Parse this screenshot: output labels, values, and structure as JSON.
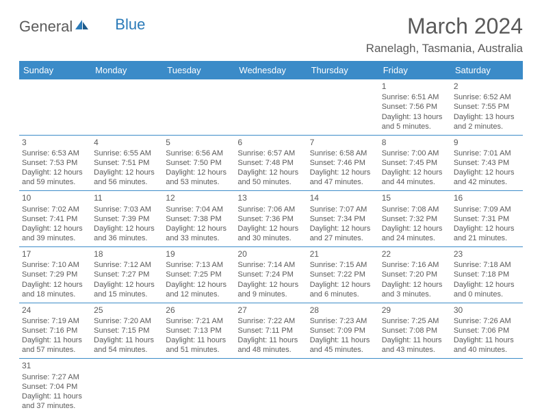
{
  "logo": {
    "general": "General",
    "blue": "Blue"
  },
  "title": "March 2024",
  "location": "Ranelagh, Tasmania, Australia",
  "colors": {
    "header_bg": "#3b8bc8",
    "row_divider": "#3b8bc8",
    "text": "#5a5a5a",
    "logo_blue": "#2a7ab8"
  },
  "weekdays": [
    "Sunday",
    "Monday",
    "Tuesday",
    "Wednesday",
    "Thursday",
    "Friday",
    "Saturday"
  ],
  "weeks": [
    [
      null,
      null,
      null,
      null,
      null,
      {
        "n": "1",
        "sr": "Sunrise: 6:51 AM",
        "ss": "Sunset: 7:56 PM",
        "d1": "Daylight: 13 hours",
        "d2": "and 5 minutes."
      },
      {
        "n": "2",
        "sr": "Sunrise: 6:52 AM",
        "ss": "Sunset: 7:55 PM",
        "d1": "Daylight: 13 hours",
        "d2": "and 2 minutes."
      }
    ],
    [
      {
        "n": "3",
        "sr": "Sunrise: 6:53 AM",
        "ss": "Sunset: 7:53 PM",
        "d1": "Daylight: 12 hours",
        "d2": "and 59 minutes."
      },
      {
        "n": "4",
        "sr": "Sunrise: 6:55 AM",
        "ss": "Sunset: 7:51 PM",
        "d1": "Daylight: 12 hours",
        "d2": "and 56 minutes."
      },
      {
        "n": "5",
        "sr": "Sunrise: 6:56 AM",
        "ss": "Sunset: 7:50 PM",
        "d1": "Daylight: 12 hours",
        "d2": "and 53 minutes."
      },
      {
        "n": "6",
        "sr": "Sunrise: 6:57 AM",
        "ss": "Sunset: 7:48 PM",
        "d1": "Daylight: 12 hours",
        "d2": "and 50 minutes."
      },
      {
        "n": "7",
        "sr": "Sunrise: 6:58 AM",
        "ss": "Sunset: 7:46 PM",
        "d1": "Daylight: 12 hours",
        "d2": "and 47 minutes."
      },
      {
        "n": "8",
        "sr": "Sunrise: 7:00 AM",
        "ss": "Sunset: 7:45 PM",
        "d1": "Daylight: 12 hours",
        "d2": "and 44 minutes."
      },
      {
        "n": "9",
        "sr": "Sunrise: 7:01 AM",
        "ss": "Sunset: 7:43 PM",
        "d1": "Daylight: 12 hours",
        "d2": "and 42 minutes."
      }
    ],
    [
      {
        "n": "10",
        "sr": "Sunrise: 7:02 AM",
        "ss": "Sunset: 7:41 PM",
        "d1": "Daylight: 12 hours",
        "d2": "and 39 minutes."
      },
      {
        "n": "11",
        "sr": "Sunrise: 7:03 AM",
        "ss": "Sunset: 7:39 PM",
        "d1": "Daylight: 12 hours",
        "d2": "and 36 minutes."
      },
      {
        "n": "12",
        "sr": "Sunrise: 7:04 AM",
        "ss": "Sunset: 7:38 PM",
        "d1": "Daylight: 12 hours",
        "d2": "and 33 minutes."
      },
      {
        "n": "13",
        "sr": "Sunrise: 7:06 AM",
        "ss": "Sunset: 7:36 PM",
        "d1": "Daylight: 12 hours",
        "d2": "and 30 minutes."
      },
      {
        "n": "14",
        "sr": "Sunrise: 7:07 AM",
        "ss": "Sunset: 7:34 PM",
        "d1": "Daylight: 12 hours",
        "d2": "and 27 minutes."
      },
      {
        "n": "15",
        "sr": "Sunrise: 7:08 AM",
        "ss": "Sunset: 7:32 PM",
        "d1": "Daylight: 12 hours",
        "d2": "and 24 minutes."
      },
      {
        "n": "16",
        "sr": "Sunrise: 7:09 AM",
        "ss": "Sunset: 7:31 PM",
        "d1": "Daylight: 12 hours",
        "d2": "and 21 minutes."
      }
    ],
    [
      {
        "n": "17",
        "sr": "Sunrise: 7:10 AM",
        "ss": "Sunset: 7:29 PM",
        "d1": "Daylight: 12 hours",
        "d2": "and 18 minutes."
      },
      {
        "n": "18",
        "sr": "Sunrise: 7:12 AM",
        "ss": "Sunset: 7:27 PM",
        "d1": "Daylight: 12 hours",
        "d2": "and 15 minutes."
      },
      {
        "n": "19",
        "sr": "Sunrise: 7:13 AM",
        "ss": "Sunset: 7:25 PM",
        "d1": "Daylight: 12 hours",
        "d2": "and 12 minutes."
      },
      {
        "n": "20",
        "sr": "Sunrise: 7:14 AM",
        "ss": "Sunset: 7:24 PM",
        "d1": "Daylight: 12 hours",
        "d2": "and 9 minutes."
      },
      {
        "n": "21",
        "sr": "Sunrise: 7:15 AM",
        "ss": "Sunset: 7:22 PM",
        "d1": "Daylight: 12 hours",
        "d2": "and 6 minutes."
      },
      {
        "n": "22",
        "sr": "Sunrise: 7:16 AM",
        "ss": "Sunset: 7:20 PM",
        "d1": "Daylight: 12 hours",
        "d2": "and 3 minutes."
      },
      {
        "n": "23",
        "sr": "Sunrise: 7:18 AM",
        "ss": "Sunset: 7:18 PM",
        "d1": "Daylight: 12 hours",
        "d2": "and 0 minutes."
      }
    ],
    [
      {
        "n": "24",
        "sr": "Sunrise: 7:19 AM",
        "ss": "Sunset: 7:16 PM",
        "d1": "Daylight: 11 hours",
        "d2": "and 57 minutes."
      },
      {
        "n": "25",
        "sr": "Sunrise: 7:20 AM",
        "ss": "Sunset: 7:15 PM",
        "d1": "Daylight: 11 hours",
        "d2": "and 54 minutes."
      },
      {
        "n": "26",
        "sr": "Sunrise: 7:21 AM",
        "ss": "Sunset: 7:13 PM",
        "d1": "Daylight: 11 hours",
        "d2": "and 51 minutes."
      },
      {
        "n": "27",
        "sr": "Sunrise: 7:22 AM",
        "ss": "Sunset: 7:11 PM",
        "d1": "Daylight: 11 hours",
        "d2": "and 48 minutes."
      },
      {
        "n": "28",
        "sr": "Sunrise: 7:23 AM",
        "ss": "Sunset: 7:09 PM",
        "d1": "Daylight: 11 hours",
        "d2": "and 45 minutes."
      },
      {
        "n": "29",
        "sr": "Sunrise: 7:25 AM",
        "ss": "Sunset: 7:08 PM",
        "d1": "Daylight: 11 hours",
        "d2": "and 43 minutes."
      },
      {
        "n": "30",
        "sr": "Sunrise: 7:26 AM",
        "ss": "Sunset: 7:06 PM",
        "d1": "Daylight: 11 hours",
        "d2": "and 40 minutes."
      }
    ],
    [
      {
        "n": "31",
        "sr": "Sunrise: 7:27 AM",
        "ss": "Sunset: 7:04 PM",
        "d1": "Daylight: 11 hours",
        "d2": "and 37 minutes."
      },
      null,
      null,
      null,
      null,
      null,
      null
    ]
  ]
}
